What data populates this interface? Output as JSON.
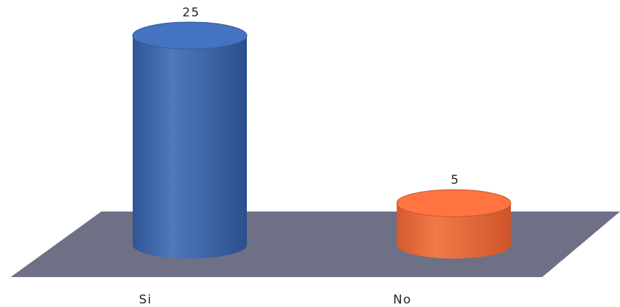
{
  "colors": {
    "floor": "#6e7085",
    "series": [
      "#3d67ad",
      "#e8683a"
    ]
  },
  "chart_data": {
    "type": "bar",
    "style": "3d-cylinder",
    "categories": [
      "Si",
      "No"
    ],
    "values": [
      25,
      5
    ],
    "data_labels": [
      "25",
      "5"
    ],
    "title": "",
    "xlabel": "",
    "ylabel": "",
    "ylim": [
      0,
      25
    ],
    "grid": false,
    "legend": "none"
  }
}
